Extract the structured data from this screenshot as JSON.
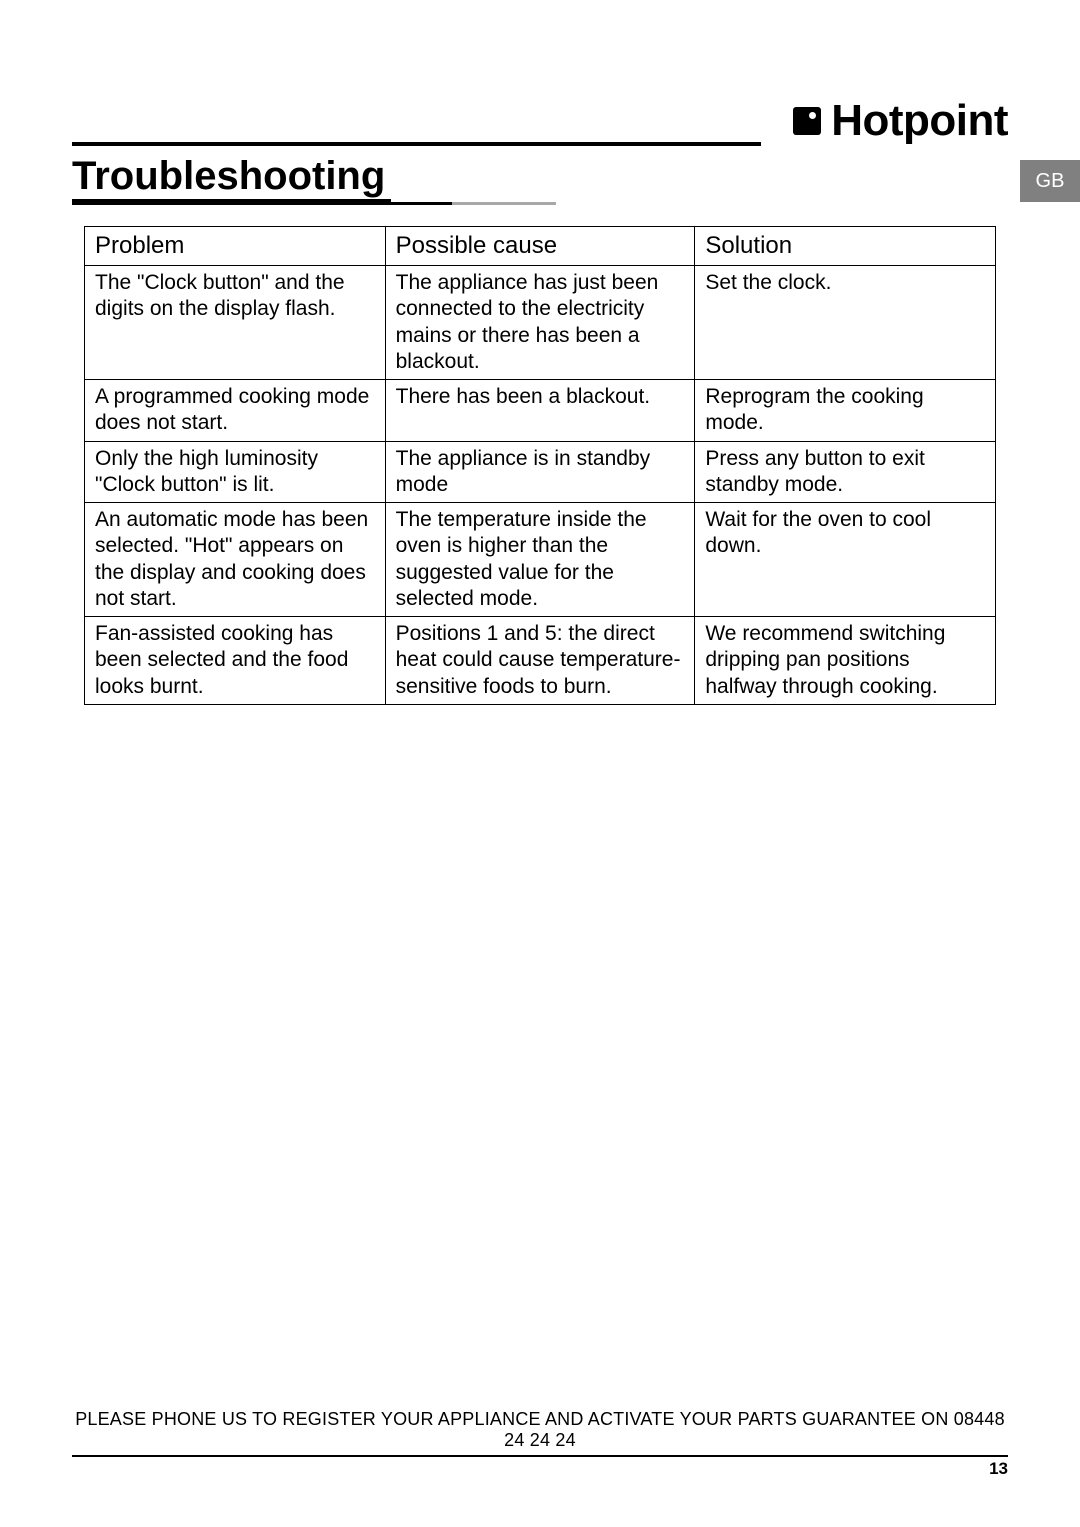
{
  "brand": {
    "name": "Hotpoint"
  },
  "region_tab": "GB",
  "heading": "Troubleshooting",
  "table": {
    "columns": [
      "Problem",
      "Possible cause",
      "Solution"
    ],
    "rows": [
      {
        "problem": "The \"Clock button\" and the digits on the display flash.",
        "cause": "The appliance has just been connected to the electricity mains or there has been a blackout.",
        "solution": "Set the clock."
      },
      {
        "problem": "A programmed cooking mode does not start.",
        "cause": "There has been a blackout.",
        "solution": "Reprogram the cooking mode."
      },
      {
        "problem": "Only the high luminosity \"Clock button\" is lit.",
        "cause": "The appliance is in standby mode",
        "solution": "Press any button to exit standby mode."
      },
      {
        "problem": "An automatic mode has been selected. \"Hot\" appears on the display and cooking does not start.",
        "cause": "The temperature inside the oven is higher than the suggested value for the selected mode.",
        "solution": "Wait for the oven to cool down."
      },
      {
        "problem": "Fan-assisted cooking has been selected and the food looks burnt.",
        "cause": "Positions 1 and 5: the direct heat could cause temperature-sensitive foods to burn.",
        "solution": "We recommend switching dripping pan positions halfway through cooking."
      }
    ]
  },
  "footer": {
    "text": "PLEASE PHONE US TO REGISTER YOUR APPLIANCE AND ACTIVATE YOUR PARTS GUARANTEE ON 08448 24 24 24",
    "page_number": "13"
  },
  "colors": {
    "page_bg": "#ffffff",
    "text": "#000000",
    "tab_bg": "#808080",
    "tab_text": "#ffffff",
    "rule_gray": "#a8a8a8"
  },
  "typography": {
    "heading_size_pt": 30,
    "brand_size_pt": 33,
    "body_size_pt": 16,
    "th_size_pt": 18,
    "footer_size_pt": 13.5
  }
}
